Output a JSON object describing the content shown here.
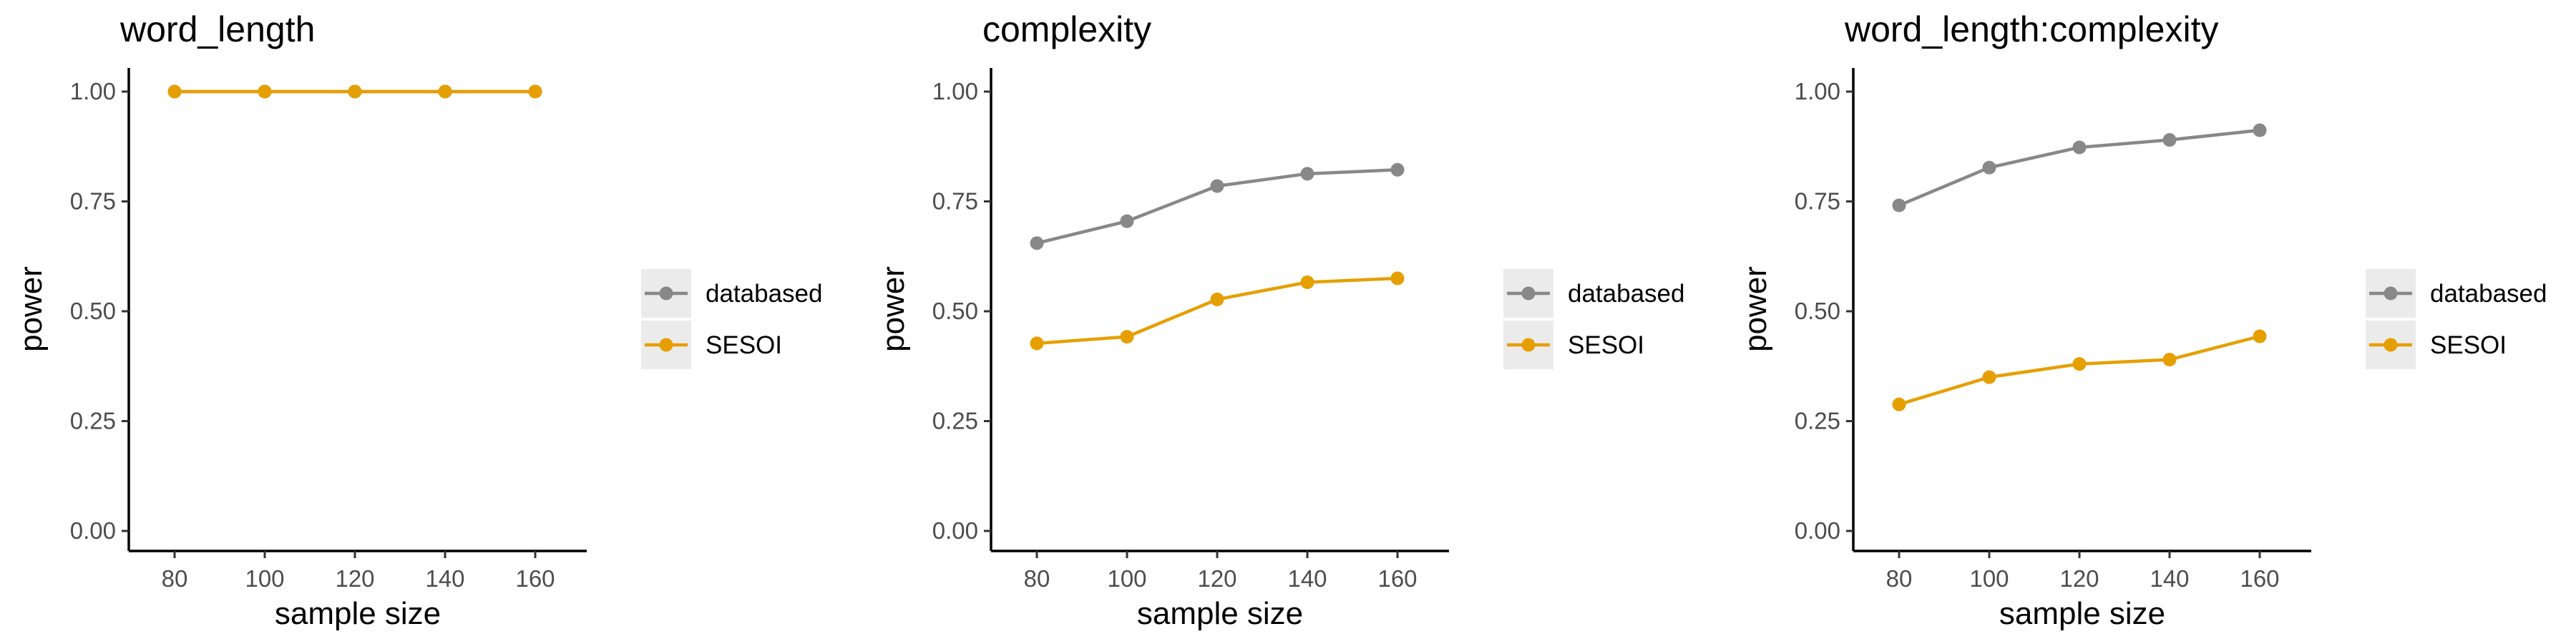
{
  "chart_data": [
    {
      "type": "line",
      "title": "word_length",
      "xlabel": "sample size",
      "ylabel": "power",
      "x": [
        80,
        100,
        120,
        140,
        160
      ],
      "xticks": [
        "80",
        "100",
        "120",
        "140",
        "160"
      ],
      "yticks": [
        "0.00",
        "0.25",
        "0.50",
        "0.75",
        "1.00"
      ],
      "xlim": [
        70,
        190
      ],
      "ylim": [
        0,
        1
      ],
      "grid": false,
      "legend": "right",
      "series": [
        {
          "name": "databased",
          "color": "#888888",
          "values": [
            1.0,
            1.0,
            1.0,
            1.0,
            1.0
          ]
        },
        {
          "name": "SESOI",
          "color": "#E69F00",
          "values": [
            1.0,
            1.0,
            1.0,
            1.0,
            1.0
          ]
        }
      ]
    },
    {
      "type": "line",
      "title": "complexity",
      "xlabel": "sample size",
      "ylabel": "power",
      "x": [
        80,
        100,
        120,
        140,
        160
      ],
      "xticks": [
        "80",
        "100",
        "120",
        "140",
        "160"
      ],
      "yticks": [
        "0.00",
        "0.25",
        "0.50",
        "0.75",
        "1.00"
      ],
      "xlim": [
        70,
        190
      ],
      "ylim": [
        0,
        1
      ],
      "grid": false,
      "legend": "right",
      "series": [
        {
          "name": "databased",
          "color": "#888888",
          "values": [
            0.655,
            0.705,
            0.785,
            0.813,
            0.822
          ]
        },
        {
          "name": "SESOI",
          "color": "#E69F00",
          "values": [
            0.427,
            0.442,
            0.527,
            0.566,
            0.575
          ]
        }
      ]
    },
    {
      "type": "line",
      "title": "word_length:complexity",
      "xlabel": "sample size",
      "ylabel": "power",
      "x": [
        80,
        100,
        120,
        140,
        160
      ],
      "xticks": [
        "80",
        "100",
        "120",
        "140",
        "160"
      ],
      "yticks": [
        "0.00",
        "0.25",
        "0.50",
        "0.75",
        "1.00"
      ],
      "xlim": [
        70,
        190
      ],
      "ylim": [
        0,
        1
      ],
      "grid": false,
      "legend": "right",
      "series": [
        {
          "name": "databased",
          "color": "#888888",
          "values": [
            0.741,
            0.827,
            0.873,
            0.89,
            0.912
          ]
        },
        {
          "name": "SESOI",
          "color": "#E69F00",
          "values": [
            0.288,
            0.35,
            0.38,
            0.39,
            0.443
          ]
        }
      ]
    }
  ]
}
